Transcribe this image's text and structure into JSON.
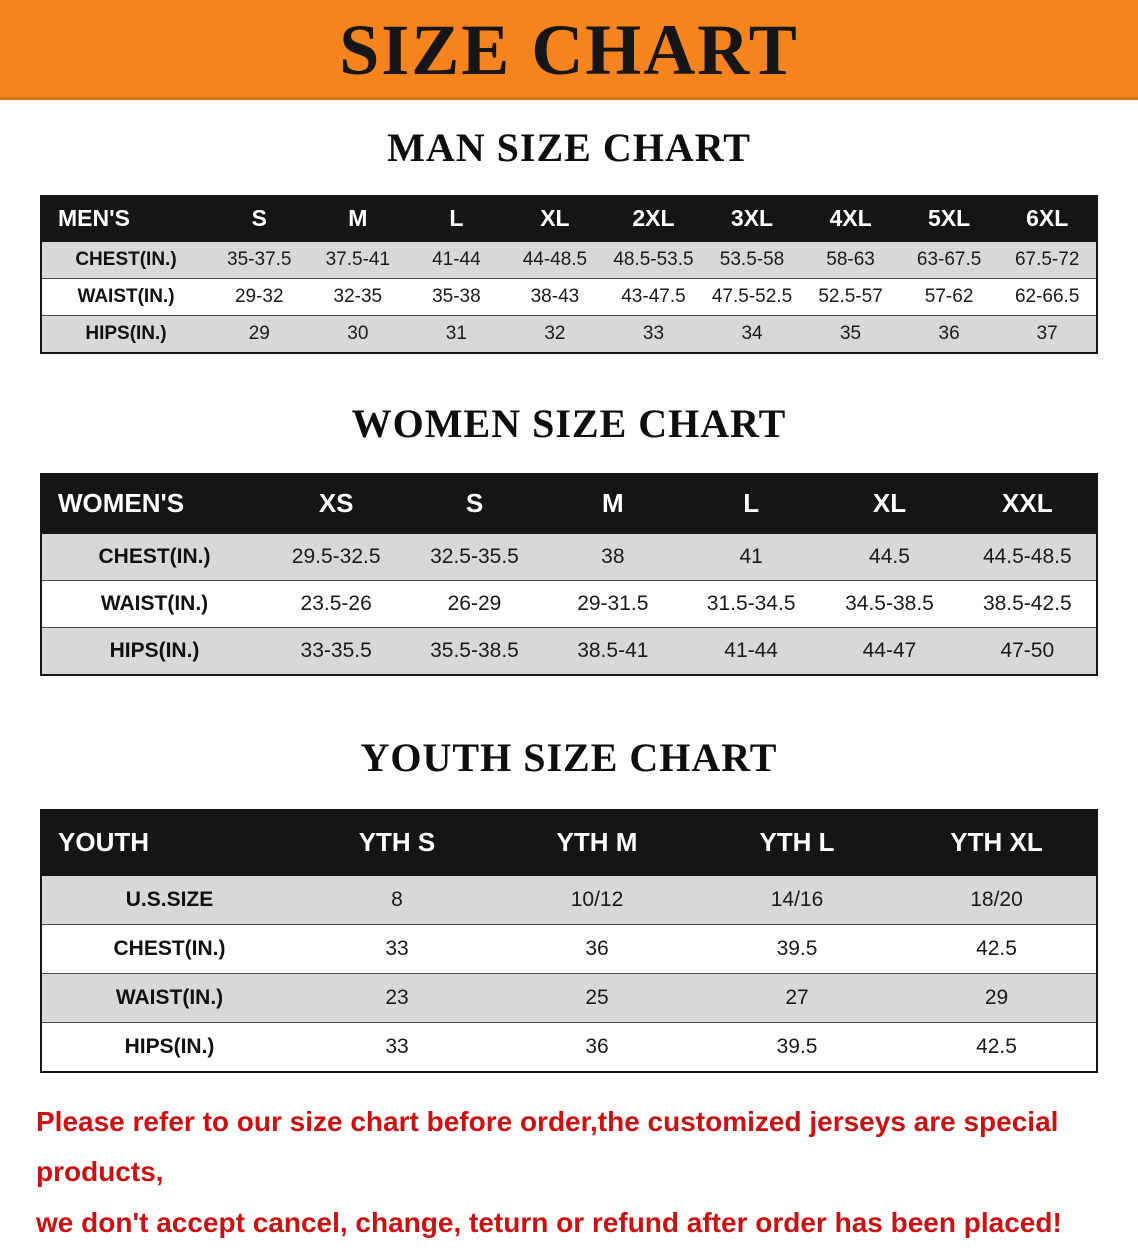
{
  "banner": {
    "title": "SIZE CHART",
    "bg_color": "#f5841f",
    "text_color": "#161616"
  },
  "colors": {
    "table_header_bg": "#151515",
    "table_header_text": "#ffffff",
    "row_shaded": "#d8d8d8",
    "row_plain": "#ffffff",
    "disclaimer_text": "#cc1111"
  },
  "sections": [
    {
      "heading": "MAN SIZE CHART",
      "table": {
        "header": [
          "MEN'S",
          "S",
          "M",
          "L",
          "XL",
          "2XL",
          "3XL",
          "4XL",
          "5XL",
          "6XL"
        ],
        "rows": [
          [
            "CHEST(IN.)",
            "35-37.5",
            "37.5-41",
            "41-44",
            "44-48.5",
            "48.5-53.5",
            "53.5-58",
            "58-63",
            "63-67.5",
            "67.5-72"
          ],
          [
            "WAIST(IN.)",
            "29-32",
            "32-35",
            "35-38",
            "38-43",
            "43-47.5",
            "47.5-52.5",
            "52.5-57",
            "57-62",
            "62-66.5"
          ],
          [
            "HIPS(IN.)",
            "29",
            "30",
            "31",
            "32",
            "33",
            "34",
            "35",
            "36",
            "37"
          ]
        ]
      }
    },
    {
      "heading": "WOMEN SIZE CHART",
      "table": {
        "header": [
          "WOMEN'S",
          "XS",
          "S",
          "M",
          "L",
          "XL",
          "XXL"
        ],
        "rows": [
          [
            "CHEST(IN.)",
            "29.5-32.5",
            "32.5-35.5",
            "38",
            "41",
            "44.5",
            "44.5-48.5"
          ],
          [
            "WAIST(IN.)",
            "23.5-26",
            "26-29",
            "29-31.5",
            "31.5-34.5",
            "34.5-38.5",
            "38.5-42.5"
          ],
          [
            "HIPS(IN.)",
            "33-35.5",
            "35.5-38.5",
            "38.5-41",
            "41-44",
            "44-47",
            "47-50"
          ]
        ]
      }
    },
    {
      "heading": "YOUTH SIZE CHART",
      "table": {
        "header": [
          "YOUTH",
          "YTH S",
          "YTH M",
          "YTH L",
          "YTH XL"
        ],
        "rows": [
          [
            "U.S.SIZE",
            "8",
            "10/12",
            "14/16",
            "18/20"
          ],
          [
            "CHEST(IN.)",
            "33",
            "36",
            "39.5",
            "42.5"
          ],
          [
            "WAIST(IN.)",
            "23",
            "25",
            "27",
            "29"
          ],
          [
            "HIPS(IN.)",
            "33",
            "36",
            "39.5",
            "42.5"
          ]
        ]
      }
    }
  ],
  "disclaimer": {
    "line1": "Please refer to our size chart before order,the customized jerseys are special products,",
    "line2": "we don't accept cancel, change, teturn or refund after order has been placed!"
  }
}
